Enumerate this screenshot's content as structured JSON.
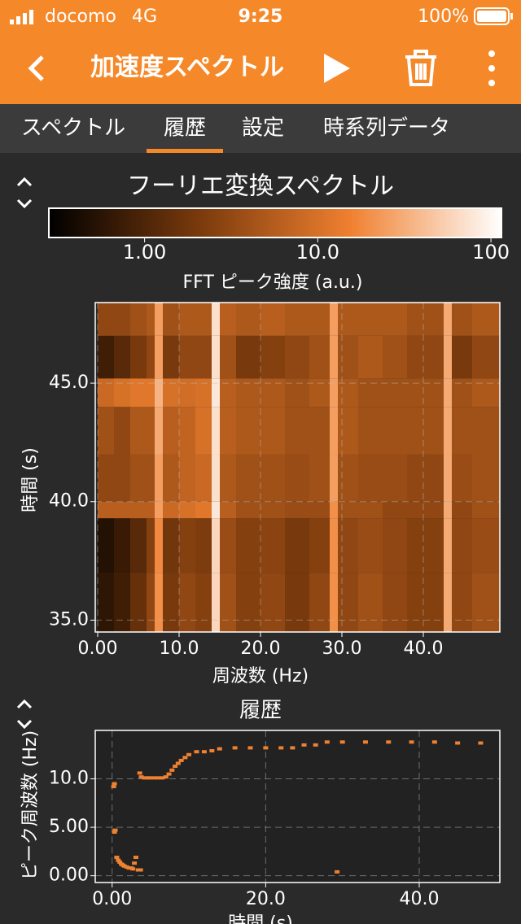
{
  "status_bar": {
    "carrier": "docomo",
    "network": "4G",
    "time": "9:25",
    "battery": "100%"
  },
  "header": {
    "title": "加速度スペクトル"
  },
  "tabs": [
    "スペクトル",
    "履歴",
    "設定",
    "時系列データ"
  ],
  "active_tab": 1,
  "chart_data": [
    {
      "type": "heatmap",
      "title": "フーリエ変換スペクトル",
      "colorbar_label": "FFT ピーク強度 (a.u.)",
      "xlabel": "周波数 (Hz)",
      "ylabel": "時間 (s)",
      "xbins": [
        0,
        2,
        4,
        6,
        7,
        8,
        10,
        12,
        14,
        15,
        17,
        20,
        23,
        26,
        28.5,
        29.5,
        32,
        35,
        38,
        42.5,
        43.5,
        46,
        49.4
      ],
      "ybins": [
        34.5,
        37,
        39.3,
        40,
        42,
        44,
        45.2,
        47,
        48.4
      ],
      "z": [
        [
          0.6,
          0.8,
          1.5,
          3,
          20,
          2,
          3,
          2.5,
          60,
          4,
          2.5,
          3,
          2,
          3,
          20,
          3,
          4,
          3,
          2.5,
          30,
          3,
          4
        ],
        [
          0.5,
          0.7,
          1.2,
          2.5,
          18,
          1.8,
          2.5,
          2.2,
          60,
          3.5,
          2.5,
          2.8,
          2,
          2.5,
          20,
          3,
          3.5,
          3,
          2.5,
          30,
          3,
          3.5
        ],
        [
          6,
          6,
          6,
          6,
          25,
          8,
          10,
          12,
          80,
          6,
          4,
          4,
          3.5,
          3.5,
          20,
          4,
          4,
          3,
          3,
          30,
          3,
          4
        ],
        [
          3,
          3,
          4,
          4,
          25,
          5,
          7,
          8,
          70,
          5,
          4,
          4,
          3.5,
          4,
          25,
          4,
          3.5,
          3.5,
          3,
          30,
          3.5,
          4
        ],
        [
          4,
          3,
          5,
          5,
          30,
          6,
          7,
          10,
          70,
          6,
          5,
          5,
          4,
          4,
          25,
          5,
          4,
          4,
          4,
          30,
          4,
          4
        ],
        [
          8,
          10,
          12,
          12,
          35,
          10,
          9,
          10,
          80,
          6,
          5,
          5,
          4,
          5,
          25,
          5,
          4,
          4,
          4,
          30,
          4,
          5
        ],
        [
          0.8,
          1.2,
          2,
          3,
          25,
          2,
          3,
          3,
          70,
          4,
          2,
          2.5,
          3,
          4,
          25,
          4,
          5,
          4,
          3,
          30,
          2,
          3
        ],
        [
          3,
          3,
          4,
          5,
          25,
          4,
          5,
          5,
          70,
          6,
          5,
          6,
          5,
          5,
          25,
          5,
          5,
          5,
          4,
          30,
          4,
          5
        ]
      ],
      "xlim": [
        -0.3,
        49.4
      ],
      "ylim": [
        34.5,
        48.4
      ],
      "xticks": [
        {
          "value": 0,
          "label": "0.00"
        },
        {
          "value": 10,
          "label": "10.0"
        },
        {
          "value": 20,
          "label": "20.0"
        },
        {
          "value": 30,
          "label": "30.0"
        },
        {
          "value": 40,
          "label": "40.0"
        }
      ],
      "yticks": [
        {
          "value": 35,
          "label": "35.0"
        },
        {
          "value": 40,
          "label": "40.0"
        },
        {
          "value": 45,
          "label": "45.0"
        }
      ],
      "clim": [
        0.28,
        115
      ],
      "cticks": [
        {
          "value": 1,
          "label": "1.00"
        },
        {
          "value": 10,
          "label": "10.0"
        },
        100
      ],
      "color_scale": "log",
      "colormap": [
        "#000000",
        "#7a3a0c",
        "#f08030",
        "#ffffff"
      ],
      "grid": true
    },
    {
      "type": "scatter",
      "title": "履歴",
      "xlabel": "時間 (s)",
      "ylabel": "ピーク周波数 (Hz)",
      "x": [
        0.2,
        0.3,
        0.3,
        0.4,
        0.6,
        0.8,
        1.0,
        1.2,
        1.4,
        1.6,
        1.9,
        2.2,
        2.5,
        2.7,
        2.9,
        3.1,
        3.4,
        3.7,
        3.6,
        3.8,
        4.2,
        4.6,
        5.0,
        5.5,
        6.0,
        6.5,
        7.0,
        7.4,
        7.8,
        8.2,
        8.6,
        9.0,
        9.5,
        10.0,
        11.0,
        12.0,
        13.0,
        14.0,
        16.0,
        18.0,
        20.0,
        22.0,
        23.5,
        25.0,
        26.5,
        28.0,
        29.3,
        30.0,
        33.0,
        36.0,
        39.0,
        42.0,
        45.0,
        48.0
      ],
      "values": [
        9.2,
        9.5,
        4.5,
        4.7,
        1.9,
        1.6,
        1.4,
        1.2,
        1.1,
        1.0,
        0.9,
        0.8,
        0.8,
        0.7,
        1.3,
        1.9,
        0.6,
        0.6,
        10.6,
        10.2,
        10.1,
        10.1,
        10.1,
        10.1,
        10.1,
        10.1,
        10.2,
        10.5,
        10.9,
        11.3,
        11.6,
        11.9,
        12.2,
        12.5,
        12.8,
        12.8,
        12.9,
        13.1,
        13.2,
        13.2,
        13.2,
        13.2,
        13.2,
        13.5,
        13.5,
        13.8,
        0.4,
        13.8,
        13.8,
        13.8,
        13.8,
        13.8,
        13.7,
        13.7
      ],
      "color": "#ee8232",
      "xlim": [
        -2.2,
        50.5
      ],
      "ylim": [
        -0.7,
        15.0
      ],
      "xticks": [
        {
          "value": 0,
          "label": "0.00"
        },
        {
          "value": 20,
          "label": "20.0"
        },
        {
          "value": 40,
          "label": "40.0"
        }
      ],
      "yticks": [
        {
          "value": 0,
          "label": "0.00"
        },
        {
          "value": 5,
          "label": "5.00"
        },
        {
          "value": 10,
          "label": "10.0"
        }
      ],
      "grid": true
    }
  ]
}
